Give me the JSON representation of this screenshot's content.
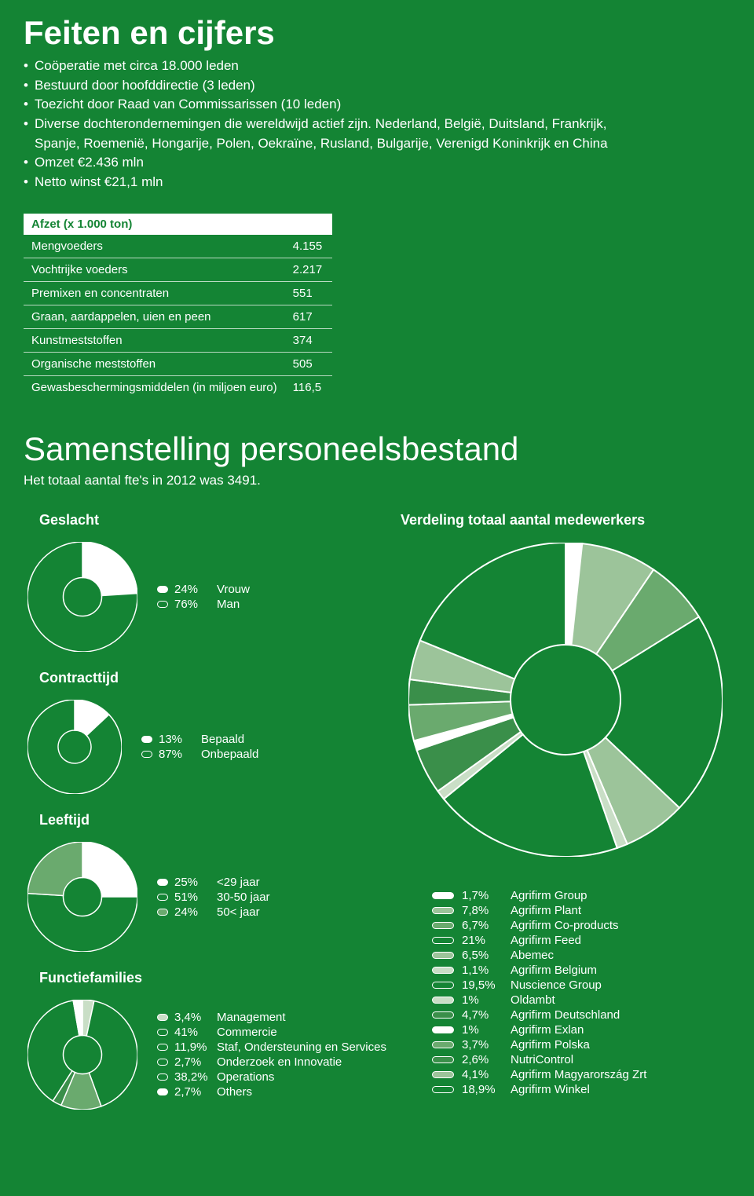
{
  "page_bg": "#148434",
  "text_color": "#ffffff",
  "header": {
    "title": "Feiten en cijfers",
    "bullets": [
      "Coöperatie met circa 18.000 leden",
      "Bestuurd door hoofddirectie (3 leden)",
      "Toezicht door Raad van Commissarissen (10 leden)",
      "Diverse dochterondernemingen die wereldwijd actief zijn. Nederland, België, Duitsland, Frankrijk,"
    ],
    "cont_line": "Spanje, Roemenië, Hongarije, Polen, Oekraïne, Rusland, Bulgarije, Verenigd Koninkrijk en China",
    "bullets2": [
      "Omzet €2.436 mln",
      "Netto winst €21,1 mln"
    ]
  },
  "afzet": {
    "title": "Afzet (x 1.000 ton)",
    "rows": [
      {
        "label": "Mengvoeders",
        "value": "4.155"
      },
      {
        "label": "Vochtrijke voeders",
        "value": "2.217"
      },
      {
        "label": "Premixen en concentraten",
        "value": "551"
      },
      {
        "label": "Graan, aardappelen, uien en peen",
        "value": "617"
      },
      {
        "label": "Kunstmeststoffen",
        "value": "374"
      },
      {
        "label": "Organische meststoffen",
        "value": "505"
      },
      {
        "label": "Gewasbeschermingsmiddelen (in miljoen euro)",
        "value": "116,5"
      }
    ]
  },
  "personeel": {
    "title": "Samenstelling personeelsbestand",
    "subtitle": "Het totaal aantal fte's in 2012 was 3491.",
    "donut_inner_ratio": 0.35,
    "geslacht": {
      "title": "Geslacht",
      "items": [
        {
          "pct": "24%",
          "label": "Vrouw",
          "value": 24,
          "fill": "#ffffff",
          "swatch_fill": "#ffffff"
        },
        {
          "pct": "76%",
          "label": "Man",
          "value": 76,
          "fill": "#148434",
          "swatch_fill": "transparent"
        }
      ],
      "stroke": "#ffffff",
      "stroke_width": 1.5
    },
    "contract": {
      "title": "Contracttijd",
      "items": [
        {
          "pct": "13%",
          "label": "Bepaald",
          "value": 13,
          "fill": "#ffffff",
          "swatch_fill": "#ffffff"
        },
        {
          "pct": "87%",
          "label": "Onbepaald",
          "value": 87,
          "fill": "#148434",
          "swatch_fill": "transparent"
        }
      ],
      "stroke": "#ffffff",
      "stroke_width": 1.5
    },
    "leeftijd": {
      "title": "Leeftijd",
      "items": [
        {
          "pct": "25%",
          "label": "<29 jaar",
          "value": 25,
          "fill": "#ffffff",
          "swatch_fill": "#ffffff"
        },
        {
          "pct": "51%",
          "label": "30-50 jaar",
          "value": 51,
          "fill": "#148434",
          "swatch_fill": "transparent"
        },
        {
          "pct": "24%",
          "label": "50< jaar",
          "value": 24,
          "fill": "#6aaa6e",
          "swatch_fill": "#6aaa6e"
        }
      ],
      "stroke": "#ffffff",
      "stroke_width": 1.5
    },
    "functie": {
      "title": "Functiefamilies",
      "items": [
        {
          "pct": "3,4%",
          "label": "Management",
          "value": 3.4,
          "fill": "#c9dec6",
          "swatch_fill": "#c9dec6"
        },
        {
          "pct": "41%",
          "label": "Commercie",
          "value": 41,
          "fill": "#148434",
          "swatch_fill": "transparent"
        },
        {
          "pct": "11,9%",
          "label": "Staf, Ondersteuning en Services",
          "value": 11.9,
          "fill": "#6aaa6e",
          "swatch_fill": "transparent"
        },
        {
          "pct": "2,7%",
          "label": "Onderzoek en Innovatie",
          "value": 2.7,
          "fill": "#3a8f4a",
          "swatch_fill": "transparent"
        },
        {
          "pct": "38,2%",
          "label": "Operations",
          "value": 38.2,
          "fill": "#148434",
          "swatch_fill": "transparent"
        },
        {
          "pct": "2,7%",
          "label": "Others",
          "value": 2.7,
          "fill": "#ffffff",
          "swatch_fill": "#ffffff"
        }
      ],
      "stroke": "#ffffff",
      "stroke_width": 1.5
    },
    "verdeling": {
      "title": "Verdeling totaal aantal medewerkers",
      "stroke": "#ffffff",
      "stroke_width": 2,
      "items": [
        {
          "pct": "1,7%",
          "label": "Agrifirm Group",
          "value": 1.7,
          "fill": "#ffffff"
        },
        {
          "pct": "7,8%",
          "label": "Agrifirm Plant",
          "value": 7.8,
          "fill": "#9cc49a"
        },
        {
          "pct": "6,7%",
          "label": "Agrifirm Co-products",
          "value": 6.7,
          "fill": "#6aaa6e"
        },
        {
          "pct": "21%",
          "label": "Agrifirm Feed",
          "value": 21,
          "fill": "#148434"
        },
        {
          "pct": "6,5%",
          "label": "Abemec",
          "value": 6.5,
          "fill": "#9cc49a"
        },
        {
          "pct": "1,1%",
          "label": "Agrifirm Belgium",
          "value": 1.1,
          "fill": "#c9dec6"
        },
        {
          "pct": "19,5%",
          "label": "Nuscience Group",
          "value": 19.5,
          "fill": "#148434"
        },
        {
          "pct": "1%",
          "label": "Oldambt",
          "value": 1,
          "fill": "#c9dec6"
        },
        {
          "pct": "4,7%",
          "label": "Agrifirm Deutschland",
          "value": 4.7,
          "fill": "#3a8f4a"
        },
        {
          "pct": "1%",
          "label": "Agrifirm Exlan",
          "value": 1,
          "fill": "#ffffff"
        },
        {
          "pct": "3,7%",
          "label": "Agrifirm Polska",
          "value": 3.7,
          "fill": "#6aaa6e"
        },
        {
          "pct": "2,6%",
          "label": "NutriControl",
          "value": 2.6,
          "fill": "#3a8f4a"
        },
        {
          "pct": "4,1%",
          "label": "Agrifirm Magyarország Zrt",
          "value": 4.1,
          "fill": "#9cc49a"
        },
        {
          "pct": "18,9%",
          "label": "Agrifirm Winkel",
          "value": 18.9,
          "fill": "#148434"
        }
      ]
    }
  }
}
